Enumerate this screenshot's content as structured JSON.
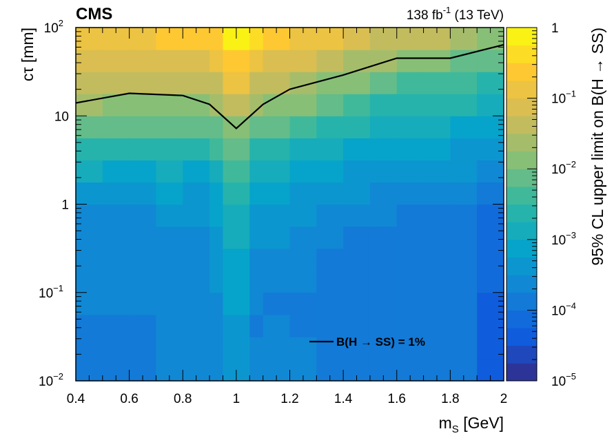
{
  "chart_data": {
    "type": "heatmap",
    "experiment": "CMS",
    "lumi_label": "138 fb",
    "lumi_exp": "-1",
    "energy_label": "(13 TeV)",
    "xlabel_main": "m",
    "xlabel_sub": "S",
    "xlabel_unit": "[GeV]",
    "ylabel": "cτ [mm]",
    "zlabel": "95% CL upper limit on B(H → SS)",
    "xlim": [
      0.4,
      2.0
    ],
    "ylim": [
      0.01,
      100
    ],
    "zlim": [
      1e-05,
      1
    ],
    "yscale": "log",
    "zscale": "log",
    "x_ticks": [
      "0.4",
      "0.6",
      "0.8",
      "1",
      "1.2",
      "1.4",
      "1.6",
      "1.8",
      "2"
    ],
    "y_ticks": [
      {
        "value": 0.01,
        "base": "10",
        "exp": "−2"
      },
      {
        "value": 0.1,
        "base": "10",
        "exp": "−1"
      },
      {
        "value": 1,
        "base": "1",
        "exp": ""
      },
      {
        "value": 10,
        "base": "10",
        "exp": ""
      },
      {
        "value": 100,
        "base": "10",
        "exp": "2"
      }
    ],
    "z_ticks": [
      {
        "value": 1e-05,
        "base": "10",
        "exp": "−5"
      },
      {
        "value": 0.0001,
        "base": "10",
        "exp": "−4"
      },
      {
        "value": 0.001,
        "base": "10",
        "exp": "−3"
      },
      {
        "value": 0.01,
        "base": "10",
        "exp": "−2"
      },
      {
        "value": 0.1,
        "base": "10",
        "exp": "−1"
      },
      {
        "value": 1,
        "base": "1",
        "exp": ""
      }
    ],
    "x_bin_edges": [
      0.4,
      0.5,
      0.6,
      0.7,
      0.8,
      0.9,
      0.95,
      1.05,
      1.1,
      1.2,
      1.3,
      1.4,
      1.5,
      1.6,
      1.7,
      1.8,
      1.9,
      2.0
    ],
    "ctau_points": [
      0.01,
      0.0178,
      0.0316,
      0.0562,
      0.1,
      0.178,
      0.316,
      0.562,
      1,
      1.78,
      3.16,
      5.62,
      10,
      17.8,
      31.6,
      56.2,
      100
    ],
    "column_profiles": [
      [
        -3.85,
        -3.85,
        -3.8,
        -3.75,
        -3.7,
        -3.7,
        -3.65,
        -3.6,
        -3.45,
        -3.2,
        -2.8,
        -2.3,
        -1.9,
        -1.6,
        -1.3,
        -1.0,
        -0.7
      ],
      [
        -3.85,
        -3.85,
        -3.8,
        -3.75,
        -3.7,
        -3.7,
        -3.65,
        -3.6,
        -3.45,
        -3.25,
        -2.9,
        -2.4,
        -2.0,
        -1.65,
        -1.3,
        -1.0,
        -0.65
      ],
      [
        -3.85,
        -3.85,
        -3.8,
        -3.75,
        -3.7,
        -3.7,
        -3.65,
        -3.6,
        -3.45,
        -3.25,
        -2.9,
        -2.45,
        -2.0,
        -1.65,
        -1.3,
        -0.95,
        -0.6
      ],
      [
        -3.75,
        -3.75,
        -3.7,
        -3.65,
        -3.6,
        -3.6,
        -3.55,
        -3.5,
        -3.35,
        -3.15,
        -2.85,
        -2.4,
        -1.95,
        -1.6,
        -1.25,
        -0.9,
        -0.55
      ],
      [
        -3.75,
        -3.75,
        -3.7,
        -3.65,
        -3.6,
        -3.6,
        -3.55,
        -3.5,
        -3.4,
        -3.2,
        -2.9,
        -2.45,
        -2.0,
        -1.6,
        -1.25,
        -0.9,
        -0.55
      ],
      [
        -3.7,
        -3.7,
        -3.65,
        -3.6,
        -3.5,
        -3.45,
        -3.4,
        -3.3,
        -3.2,
        -3.0,
        -2.7,
        -2.3,
        -1.85,
        -1.5,
        -1.1,
        -0.75,
        -0.4
      ],
      [
        -3.35,
        -3.35,
        -3.3,
        -3.25,
        -3.2,
        -3.1,
        -3.0,
        -2.95,
        -2.85,
        -2.6,
        -2.3,
        -1.95,
        -1.6,
        -1.2,
        -0.8,
        -0.4,
        -0.05
      ],
      [
        -3.75,
        -3.75,
        -3.75,
        -3.8,
        -3.7,
        -3.6,
        -3.5,
        -3.4,
        -3.3,
        -3.1,
        -2.8,
        -2.4,
        -1.95,
        -1.5,
        -1.1,
        -0.65,
        -0.3
      ],
      [
        -3.65,
        -3.65,
        -3.65,
        -3.85,
        -3.7,
        -3.6,
        -3.5,
        -3.45,
        -3.3,
        -3.1,
        -2.8,
        -2.45,
        -2.05,
        -1.6,
        -1.2,
        -0.85,
        -0.5
      ],
      [
        -3.75,
        -3.75,
        -3.75,
        -3.8,
        -3.75,
        -3.7,
        -3.6,
        -3.55,
        -3.4,
        -3.2,
        -2.95,
        -2.6,
        -2.2,
        -1.8,
        -1.4,
        -1.0,
        -0.65
      ],
      [
        -3.85,
        -3.85,
        -3.85,
        -3.9,
        -3.95,
        -3.9,
        -3.8,
        -3.7,
        -3.55,
        -3.35,
        -3.1,
        -2.8,
        -2.45,
        -2.05,
        -1.6,
        -1.2,
        -0.8
      ],
      [
        -3.9,
        -3.9,
        -3.9,
        -3.95,
        -4.0,
        -3.95,
        -3.85,
        -3.75,
        -3.6,
        -3.4,
        -3.15,
        -2.9,
        -2.55,
        -2.2,
        -1.8,
        -1.35,
        -0.95
      ],
      [
        -3.9,
        -3.9,
        -3.9,
        -3.95,
        -4.0,
        -3.95,
        -3.9,
        -3.8,
        -3.65,
        -3.5,
        -3.25,
        -3.0,
        -2.7,
        -2.35,
        -1.95,
        -1.5,
        -1.05
      ],
      [
        -3.95,
        -3.95,
        -3.95,
        -4.0,
        -4.0,
        -4.0,
        -3.95,
        -3.85,
        -3.7,
        -3.55,
        -3.35,
        -3.1,
        -2.8,
        -2.5,
        -2.1,
        -1.65,
        -1.2
      ],
      [
        -3.95,
        -3.95,
        -3.95,
        -4.0,
        -4.0,
        -4.0,
        -3.95,
        -3.85,
        -3.7,
        -3.55,
        -3.35,
        -3.15,
        -2.85,
        -2.5,
        -2.15,
        -1.7,
        -1.25
      ],
      [
        -4.0,
        -4.0,
        -4.0,
        -4.0,
        -4.0,
        -4.0,
        -3.95,
        -3.9,
        -3.75,
        -3.6,
        -3.4,
        -3.2,
        -2.9,
        -2.6,
        -2.25,
        -1.8,
        -1.35
      ],
      [
        -4.3,
        -4.3,
        -4.3,
        -4.3,
        -4.25,
        -4.2,
        -4.15,
        -4.1,
        -4.0,
        -3.85,
        -3.6,
        -3.35,
        -3.05,
        -2.75,
        -2.4,
        -2.0,
        -1.55
      ]
    ],
    "contour": {
      "name": "B(H → SS) = 1%",
      "x": [
        0.4,
        0.6,
        0.8,
        0.9,
        1.0,
        1.1,
        1.2,
        1.4,
        1.6,
        1.8,
        2.0
      ],
      "y": [
        14,
        18,
        17,
        13.5,
        7.2,
        13.5,
        20,
        29,
        45,
        45,
        64
      ]
    },
    "legend_position": "bottom-right",
    "colormap": [
      "#352a87",
      "#0f5cdd",
      "#1481d6",
      "#06a4ca",
      "#2eb7a4",
      "#87bf77",
      "#d1bb59",
      "#fec832",
      "#f9fb0e"
    ]
  }
}
